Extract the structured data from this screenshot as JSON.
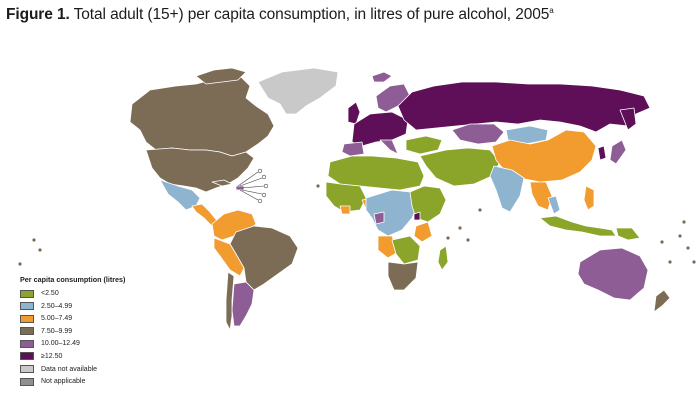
{
  "title": {
    "label": "Figure 1.",
    "text": "Total adult (15+) per capita consumption, in litres of pure alcohol, 2005",
    "footnote": "a"
  },
  "colors": {
    "ocean": "#ffffff",
    "border": "#ffffff",
    "lt2_5": "#8aa52a",
    "2_5to5": "#8fb4cf",
    "5to7_5": "#f29b2f",
    "7_5to10": "#7d6c55",
    "10to12_5": "#8e5d95",
    "ge12_5": "#5e0f58",
    "na": "#c9c9c9",
    "not_applicable": "#8f8f8f"
  },
  "legend": {
    "title": "Per capita consumption (litres)",
    "items": [
      {
        "label": "<2.50",
        "color": "#8aa52a"
      },
      {
        "label": "2.50–4.99",
        "color": "#8fb4cf"
      },
      {
        "label": "5.00–7.49",
        "color": "#f29b2f"
      },
      {
        "label": "7.50–9.99",
        "color": "#7d6c55"
      },
      {
        "label": "10.00–12.49",
        "color": "#8e5d95"
      },
      {
        "label": "≥12.50",
        "color": "#5e0f58"
      },
      {
        "label": "Data not available",
        "color": "#c9c9c9"
      },
      {
        "label": "Not applicable",
        "color": "#8f8f8f"
      }
    ]
  }
}
